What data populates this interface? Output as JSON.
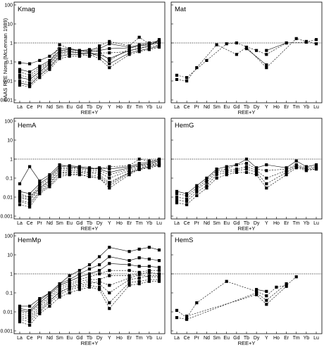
{
  "figure": {
    "ylabel": "PAAS REE Norm (McLennan 1989)",
    "xlabel": "REE+Y"
  },
  "chart_data": [
    {
      "type": "line",
      "title": "Kmag",
      "categories": [
        "La",
        "Ce",
        "Pr",
        "Nd",
        "Sm",
        "Eu",
        "Gd",
        "Tb",
        "Dy",
        "Y",
        "Ho",
        "Er",
        "Tm",
        "Yb",
        "Lu"
      ],
      "yscale": "log",
      "ylim": [
        0.001,
        100
      ],
      "reference_line": 1,
      "yticks": [
        "100",
        "10",
        "1",
        "0.1",
        "0.01",
        "0.001"
      ],
      "series": [
        {
          "values": [
            0.09,
            0.08,
            0.12,
            0.2,
            0.5,
            0.5,
            0.4,
            0.45,
            0.5,
            0.9,
            null,
            0.6,
            0.8,
            1.0,
            1.3
          ],
          "style": "solid"
        },
        {
          "values": [
            0.04,
            0.03,
            0.06,
            0.12,
            0.4,
            0.45,
            0.4,
            0.35,
            0.4,
            0.5,
            null,
            0.55,
            0.7,
            0.8,
            1.0
          ],
          "style": "solid"
        },
        {
          "values": [
            0.015,
            0.012,
            0.03,
            0.08,
            0.3,
            0.35,
            0.3,
            0.3,
            0.25,
            0.15,
            null,
            0.4,
            0.5,
            0.7,
            1.5
          ],
          "style": "solid"
        },
        {
          "values": [
            0.008,
            0.006,
            0.02,
            0.05,
            0.2,
            0.25,
            0.25,
            0.3,
            0.2,
            0.08,
            null,
            0.3,
            0.4,
            0.5,
            0.7
          ],
          "style": "solid"
        },
        {
          "values": [
            0.006,
            0.005,
            0.015,
            0.04,
            0.15,
            0.2,
            0.2,
            0.25,
            0.15,
            0.05,
            null,
            0.25,
            0.35,
            0.45,
            0.6
          ],
          "style": "dashed"
        },
        {
          "values": [
            0.02,
            0.015,
            0.04,
            0.09,
            0.8,
            0.5,
            0.4,
            0.35,
            0.7,
            1.2,
            null,
            0.7,
            2.0,
            0.9,
            1.1
          ],
          "style": "dashed"
        },
        {
          "values": [
            0.01,
            0.008,
            0.025,
            0.06,
            0.25,
            0.3,
            0.3,
            0.2,
            0.3,
            0.3,
            null,
            0.35,
            0.6,
            0.6,
            0.8
          ],
          "style": "dashed"
        },
        {
          "values": [
            0.03,
            0.02,
            0.05,
            0.1,
            0.35,
            0.4,
            0.35,
            0.4,
            0.35,
            0.12,
            null,
            0.5,
            0.7,
            0.9,
            1.2
          ],
          "style": "dashed"
        }
      ]
    },
    {
      "type": "line",
      "title": "Mat",
      "categories": [
        "La",
        "Ce",
        "Pr",
        "Nd",
        "Sm",
        "Eu",
        "Gd",
        "Tb",
        "Dy",
        "Y",
        "Ho",
        "Er",
        "Tm",
        "Yb",
        "Lu"
      ],
      "yscale": "log",
      "ylim": [
        0.001,
        100
      ],
      "reference_line": 1,
      "series": [
        {
          "values": [
            0.02,
            0.015,
            null,
            0.12,
            null,
            0.9,
            1.0,
            null,
            0.4,
            0.25,
            null,
            1.0,
            null,
            1.1,
            1.5
          ],
          "style": "dashed"
        },
        {
          "values": [
            0.012,
            0.01,
            0.05,
            null,
            0.8,
            null,
            0.25,
            0.6,
            null,
            0.05,
            null,
            null,
            1.7,
            1.2,
            0.9
          ],
          "style": "dashed"
        },
        {
          "values": [
            null,
            null,
            null,
            null,
            null,
            null,
            null,
            0.5,
            null,
            0.07,
            null,
            null,
            null,
            null,
            null
          ],
          "style": "solid"
        },
        {
          "values": [
            null,
            null,
            null,
            null,
            null,
            null,
            null,
            null,
            null,
            0.4,
            null,
            1.0,
            null,
            null,
            null
          ],
          "style": "solid"
        }
      ]
    },
    {
      "type": "line",
      "title": "HemA",
      "categories": [
        "La",
        "Ce",
        "Pr",
        "Nd",
        "Sm",
        "Eu",
        "Gd",
        "Tb",
        "Dy",
        "Y",
        "Ho",
        "Er",
        "Tm",
        "Yb",
        "Lu"
      ],
      "yscale": "log",
      "ylim": [
        0.001,
        100
      ],
      "reference_line": 1,
      "series": [
        {
          "values": [
            0.05,
            0.4,
            0.07,
            0.15,
            0.5,
            0.4,
            0.35,
            0.3,
            0.35,
            0.3,
            null,
            0.4,
            0.6,
            0.7,
            0.9
          ],
          "style": "solid"
        },
        {
          "values": [
            0.02,
            0.015,
            0.05,
            0.12,
            0.4,
            0.45,
            0.4,
            0.35,
            0.3,
            0.2,
            null,
            0.35,
            0.5,
            0.6,
            0.8
          ],
          "style": "solid"
        },
        {
          "values": [
            0.01,
            0.008,
            0.03,
            0.08,
            0.3,
            0.3,
            0.3,
            0.25,
            0.25,
            0.15,
            null,
            0.3,
            0.45,
            0.55,
            0.7
          ],
          "style": "dashed"
        },
        {
          "values": [
            0.007,
            0.005,
            0.02,
            0.05,
            0.2,
            0.2,
            0.2,
            0.2,
            0.15,
            0.06,
            null,
            0.2,
            0.35,
            0.45,
            0.6
          ],
          "style": "dashed"
        },
        {
          "values": [
            0.004,
            0.003,
            0.015,
            0.035,
            0.12,
            0.15,
            0.15,
            0.12,
            0.1,
            0.03,
            null,
            0.15,
            0.3,
            0.4,
            0.5
          ],
          "style": "dashed"
        },
        {
          "values": [
            0.015,
            0.01,
            0.04,
            0.1,
            0.35,
            0.35,
            0.35,
            0.3,
            0.3,
            0.4,
            null,
            0.45,
            1.0,
            0.8,
            1.0
          ],
          "style": "dashed"
        },
        {
          "values": [
            0.012,
            0.01,
            0.03,
            0.07,
            0.25,
            0.25,
            0.25,
            0.2,
            0.2,
            0.1,
            null,
            0.25,
            0.4,
            0.5,
            0.6
          ],
          "style": "dashed"
        },
        {
          "values": [
            0.009,
            0.007,
            0.025,
            0.06,
            0.18,
            0.2,
            0.2,
            0.15,
            0.12,
            0.05,
            null,
            0.2,
            0.3,
            0.4,
            0.5
          ],
          "style": "dashed"
        },
        {
          "values": [
            0.006,
            0.004,
            0.018,
            0.04,
            0.15,
            0.16,
            0.16,
            0.12,
            0.1,
            0.04,
            null,
            0.18,
            0.28,
            0.35,
            0.45
          ],
          "style": "dashed"
        }
      ]
    },
    {
      "type": "line",
      "title": "HemG",
      "categories": [
        "La",
        "Ce",
        "Pr",
        "Nd",
        "Sm",
        "Eu",
        "Gd",
        "Tb",
        "Dy",
        "Y",
        "Ho",
        "Er",
        "Tm",
        "Yb",
        "Lu"
      ],
      "yscale": "log",
      "ylim": [
        0.001,
        100
      ],
      "reference_line": 1,
      "series": [
        {
          "values": [
            0.02,
            0.015,
            0.04,
            0.1,
            0.3,
            0.4,
            0.5,
            1.0,
            0.35,
            0.5,
            null,
            0.35,
            0.8,
            0.4,
            0.5
          ],
          "style": "solid"
        },
        {
          "values": [
            0.015,
            0.012,
            0.03,
            0.08,
            0.25,
            0.3,
            0.5,
            0.6,
            0.3,
            0.25,
            null,
            0.3,
            0.5,
            0.35,
            0.4
          ],
          "style": "dashed"
        },
        {
          "values": [
            0.01,
            0.008,
            0.025,
            0.06,
            0.2,
            0.25,
            0.3,
            0.4,
            0.25,
            0.1,
            null,
            0.25,
            0.45,
            0.3,
            0.35
          ],
          "style": "dashed"
        },
        {
          "values": [
            0.007,
            0.006,
            0.018,
            0.04,
            0.15,
            0.2,
            0.25,
            0.3,
            0.2,
            0.05,
            null,
            0.2,
            0.4,
            0.28,
            0.3
          ],
          "style": "dashed"
        },
        {
          "values": [
            0.005,
            0.004,
            0.012,
            0.03,
            0.1,
            0.15,
            0.2,
            0.2,
            0.15,
            0.03,
            null,
            0.15,
            0.35,
            0.25,
            0.3
          ],
          "style": "dashed"
        }
      ]
    },
    {
      "type": "line",
      "title": "HemMp",
      "categories": [
        "La",
        "Ce",
        "Pr",
        "Nd",
        "Sm",
        "Eu",
        "Gd",
        "Tb",
        "Dy",
        "Y",
        "Ho",
        "Er",
        "Tm",
        "Yb",
        "Lu"
      ],
      "yscale": "log",
      "ylim": [
        0.001,
        100
      ],
      "reference_line": 1,
      "series": [
        {
          "values": [
            0.02,
            0.02,
            0.05,
            0.1,
            0.3,
            0.8,
            1.5,
            3.0,
            8.0,
            25,
            null,
            15,
            20,
            25,
            18
          ],
          "style": "solid"
        },
        {
          "values": [
            0.015,
            0.012,
            0.04,
            0.1,
            0.3,
            0.5,
            1.0,
            1.8,
            3.0,
            8.0,
            null,
            5.0,
            7.0,
            6.0,
            5.0
          ],
          "style": "solid"
        },
        {
          "values": [
            0.012,
            0.01,
            0.03,
            0.08,
            0.25,
            0.4,
            0.7,
            1.0,
            1.5,
            3.5,
            null,
            3.0,
            2.5,
            2.5,
            2.2
          ],
          "style": "solid"
        },
        {
          "values": [
            0.01,
            0.008,
            0.025,
            0.06,
            0.2,
            0.3,
            0.5,
            0.7,
            1.0,
            1.5,
            null,
            1.5,
            1.2,
            1.5,
            1.5
          ],
          "style": "dashed"
        },
        {
          "values": [
            0.008,
            0.006,
            0.02,
            0.05,
            0.15,
            0.25,
            0.4,
            0.5,
            0.5,
            0.8,
            null,
            0.8,
            1.0,
            1.2,
            1.0
          ],
          "style": "dashed"
        },
        {
          "values": [
            0.006,
            0.005,
            0.015,
            0.04,
            0.1,
            0.2,
            0.3,
            0.4,
            0.3,
            0.1,
            null,
            0.5,
            0.6,
            0.8,
            0.8
          ],
          "style": "dashed"
        },
        {
          "values": [
            0.004,
            0.003,
            0.01,
            0.03,
            0.08,
            0.15,
            0.2,
            0.25,
            0.2,
            0.03,
            null,
            0.35,
            0.4,
            0.5,
            0.5
          ],
          "style": "dashed"
        },
        {
          "values": [
            0.003,
            0.002,
            0.008,
            0.02,
            0.06,
            0.1,
            0.15,
            0.2,
            0.15,
            0.015,
            null,
            0.25,
            0.3,
            0.4,
            0.4
          ],
          "style": "dashed"
        },
        {
          "values": [
            0.005,
            0.004,
            0.012,
            0.035,
            0.12,
            0.18,
            0.25,
            0.3,
            0.4,
            0.25,
            null,
            0.6,
            0.9,
            0.7,
            0.7
          ],
          "style": "dashed"
        }
      ]
    },
    {
      "type": "line",
      "title": "HemS",
      "categories": [
        "La",
        "Ce",
        "Pr",
        "Nd",
        "Sm",
        "Eu",
        "Gd",
        "Tb",
        "Dy",
        "Y",
        "Ho",
        "Er",
        "Tm",
        "Yb",
        "Lu"
      ],
      "yscale": "log",
      "ylim": [
        0.001,
        100
      ],
      "reference_line": 1,
      "series": [
        {
          "values": [
            0.012,
            0.005,
            0.03,
            null,
            null,
            0.4,
            null,
            null,
            0.12,
            0.07,
            0.2,
            0.25,
            0.7,
            null,
            null
          ],
          "style": "dashed"
        },
        {
          "values": [
            0.005,
            0.004,
            null,
            null,
            null,
            null,
            null,
            null,
            0.1,
            0.04,
            null,
            0.3,
            null,
            null,
            null
          ],
          "style": "dashed"
        },
        {
          "values": [
            null,
            0.006,
            null,
            null,
            null,
            null,
            null,
            null,
            0.08,
            0.025,
            null,
            0.22,
            null,
            null,
            null
          ],
          "style": "dashed"
        },
        {
          "values": [
            null,
            null,
            null,
            null,
            null,
            null,
            null,
            null,
            0.15,
            0.12,
            null,
            null,
            null,
            null,
            null
          ],
          "style": "solid"
        }
      ]
    }
  ]
}
